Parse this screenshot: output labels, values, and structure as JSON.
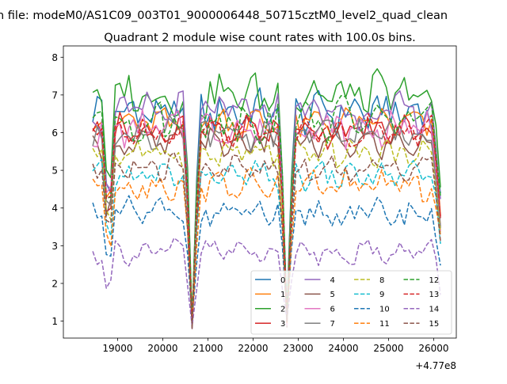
{
  "chart_data": {
    "type": "line",
    "suptitle": "n file: modeM0/AS1C09_003T01_9000006448_50715cztM0_level2_quad_clean",
    "title": "Quadrant 2 module wise count rates with 100.0s bins.",
    "xlabel": "",
    "ylabel": "",
    "offset_text": "+4.77e8",
    "xlim": [
      17800,
      26500
    ],
    "ylim": [
      0.55,
      8.3
    ],
    "xticks": [
      19000,
      20000,
      21000,
      22000,
      23000,
      24000,
      25000,
      26000
    ],
    "yticks": [
      1,
      2,
      3,
      4,
      5,
      6,
      7,
      8
    ],
    "x_start": 18450,
    "x_step": 100,
    "n_points": 78,
    "dips": [
      {
        "x": 18800,
        "depth": 0.85
      },
      {
        "x": 20650,
        "depth": 0.9
      },
      {
        "x": 22720,
        "depth": 0.85
      },
      {
        "x": 26150,
        "depth": 0.4
      }
    ],
    "legend_position": "lower right",
    "series": [
      {
        "name": "0",
        "color": "#1f77b4",
        "dash": "solid",
        "level": 6.55,
        "amp": 0.42
      },
      {
        "name": "1",
        "color": "#ff7f0e",
        "dash": "solid",
        "level": 6.25,
        "amp": 0.32
      },
      {
        "name": "2",
        "color": "#2ca02c",
        "dash": "solid",
        "level": 7.0,
        "amp": 0.45
      },
      {
        "name": "3",
        "color": "#d62728",
        "dash": "solid",
        "level": 6.05,
        "amp": 0.32
      },
      {
        "name": "4",
        "color": "#9467bd",
        "dash": "solid",
        "level": 6.55,
        "amp": 0.38
      },
      {
        "name": "5",
        "color": "#8c564b",
        "dash": "solid",
        "level": 5.7,
        "amp": 0.3
      },
      {
        "name": "6",
        "color": "#e377c2",
        "dash": "solid",
        "level": 6.1,
        "amp": 0.35
      },
      {
        "name": "7",
        "color": "#7f7f7f",
        "dash": "solid",
        "level": 5.95,
        "amp": 0.32
      },
      {
        "name": "8",
        "color": "#bcbd22",
        "dash": "dashed",
        "level": 5.45,
        "amp": 0.3
      },
      {
        "name": "9",
        "color": "#17becf",
        "dash": "dashed",
        "level": 4.85,
        "amp": 0.28
      },
      {
        "name": "10",
        "color": "#1f77b4",
        "dash": "dashed",
        "level": 3.85,
        "amp": 0.3
      },
      {
        "name": "11",
        "color": "#ff7f0e",
        "dash": "dashed",
        "level": 4.6,
        "amp": 0.3
      },
      {
        "name": "12",
        "color": "#2ca02c",
        "dash": "dashed",
        "level": 6.35,
        "amp": 0.45
      },
      {
        "name": "13",
        "color": "#d62728",
        "dash": "dashed",
        "level": 6.05,
        "amp": 0.32
      },
      {
        "name": "14",
        "color": "#9467bd",
        "dash": "dashed",
        "level": 2.85,
        "amp": 0.25
      },
      {
        "name": "15",
        "color": "#8c564b",
        "dash": "dashed",
        "level": 5.05,
        "amp": 0.3
      }
    ]
  }
}
